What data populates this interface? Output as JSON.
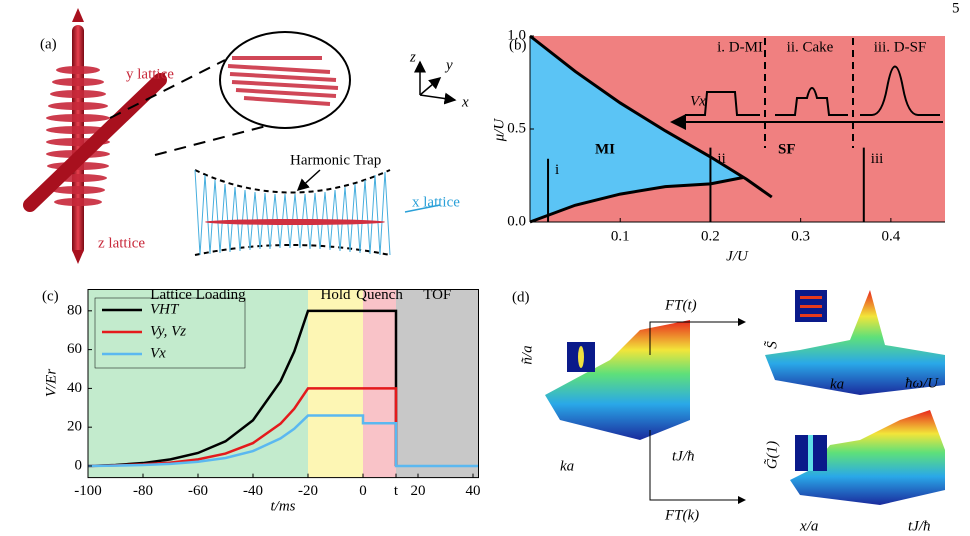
{
  "page_number": "5",
  "panel_a": {
    "label": "(a)",
    "y_lattice": "y lattice",
    "z_lattice": "z lattice",
    "x_lattice": "x lattice",
    "trap": "Harmonic Trap",
    "axis_z": "z",
    "axis_y": "y",
    "axis_x": "x"
  },
  "chart_data": [
    {
      "type": "phase-diagram",
      "panel_label": "(b)",
      "xlabel": "J/U",
      "ylabel": "μ/U",
      "xlim": [
        0,
        0.46
      ],
      "ylim": [
        0,
        1
      ],
      "xticks": [
        0.1,
        0.2,
        0.3,
        0.4
      ],
      "yticks": [
        {
          "value": 0,
          "label": "0.0"
        },
        {
          "value": 0.5,
          "label": "0.5"
        },
        {
          "value": 1,
          "label": "1.0"
        }
      ],
      "background": "#f08080",
      "mi_color": "#5bc4f5",
      "curves": [
        {
          "x": [
            0,
            0.05,
            0.1,
            0.15,
            0.2,
            0.24,
            0.268
          ],
          "values": [
            1,
            0.81,
            0.64,
            0.49,
            0.35,
            0.23,
            0.134
          ]
        },
        {
          "x": [
            0,
            0.05,
            0.1,
            0.15,
            0.2,
            0.237
          ],
          "values": [
            0,
            0.09,
            0.15,
            0.19,
            0.205,
            0.24
          ]
        }
      ],
      "phases": [
        "MI",
        "SF"
      ],
      "cuts": [
        {
          "label": "i",
          "x": 0.02,
          "top": 0.34
        },
        {
          "label": "ii",
          "x": 0.2,
          "top": 0.4
        },
        {
          "label": "iii",
          "x": 0.37,
          "top": 0.4
        }
      ],
      "regimes": [
        "i. D-MI",
        "ii. Cake",
        "iii. D-SF"
      ],
      "arrow_label": "Vx"
    },
    {
      "type": "line",
      "panel_label": "(c)",
      "xlabel": "t/ms",
      "ylabel": "V/Er",
      "xlim": [
        -100,
        42
      ],
      "ylim": [
        -6,
        91
      ],
      "xticks": [
        -100,
        -80,
        -60,
        -40,
        -20,
        0,
        {
          "value": 12,
          "label": "t"
        },
        20,
        40
      ],
      "yticks": [
        0,
        20,
        40,
        60,
        80
      ],
      "regions": [
        {
          "label": "Lattice Loading",
          "start": -100,
          "end": -20,
          "color": "#c3ebcd"
        },
        {
          "label": "Hold",
          "start": -20,
          "end": 0,
          "color": "#fdf6b4"
        },
        {
          "label": "Quench",
          "start": 0,
          "end": 12,
          "color": "#f9c3c8"
        },
        {
          "label": "TOF",
          "start": 12,
          "end": 42,
          "color": "#c8c8c8"
        }
      ],
      "x": [
        -100,
        -90,
        -80,
        -70,
        -60,
        -50,
        -40,
        -30,
        -25,
        -20,
        0,
        0,
        12,
        12,
        42
      ],
      "series": [
        {
          "name": "VHT",
          "color": "#000000",
          "values": [
            0,
            0.5,
            1.5,
            3.4,
            6.7,
            12.7,
            23.6,
            43.6,
            59,
            80,
            80,
            80,
            80,
            0,
            null
          ]
        },
        {
          "name": "Vy, Vz",
          "color": "#e41a1c",
          "values": [
            0,
            0.3,
            0.8,
            1.7,
            3.4,
            6.4,
            11.8,
            21.8,
            29.5,
            40,
            40,
            40,
            40,
            0,
            null
          ]
        },
        {
          "name": "Vx",
          "color": "#5bb8f0",
          "values": [
            0,
            0.2,
            0.5,
            1.1,
            2.2,
            4.1,
            7.7,
            14.2,
            19.2,
            26,
            26,
            22,
            22,
            0,
            0
          ]
        }
      ]
    }
  ],
  "panel_d": {
    "label": "(d)",
    "ft_t": "FT(t)",
    "ft_k": "FT(k)",
    "n_label": "ñ/a",
    "ka_left": "ka",
    "tj_left": "tJ/ħ",
    "s_label": "S̃",
    "ka_right": "ka",
    "omega": "ħω/U",
    "g_label": "G̃(1)",
    "xa": "x/a",
    "tj_right": "tJ/ħ"
  }
}
